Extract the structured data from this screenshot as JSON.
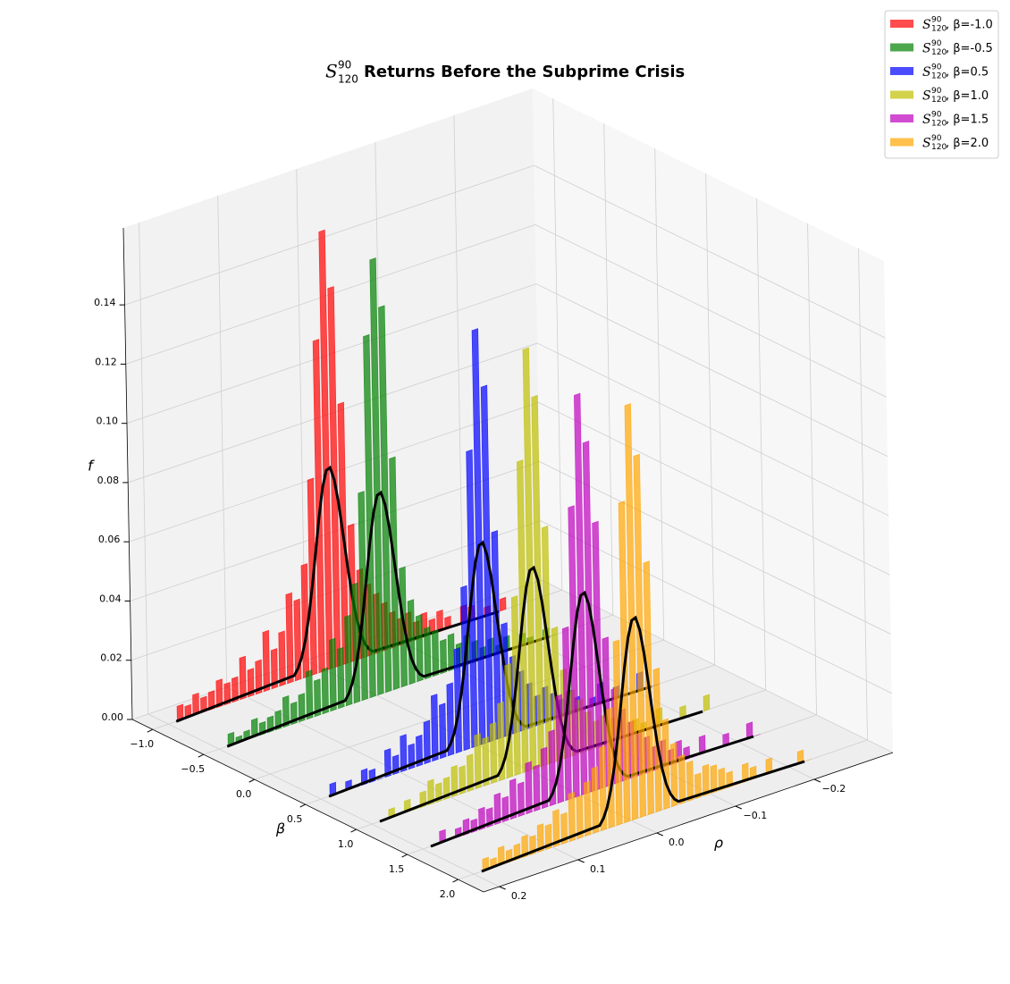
{
  "chart_data": {
    "type": "histogram3d",
    "symbol": {
      "base": "S",
      "sup": "90",
      "sub": "120"
    },
    "title": "Returns Before the Subprime Crisis",
    "xlabel": "ρ",
    "ylabel": "β",
    "zlabel": "f",
    "xlim": [
      -0.3,
      0.22
    ],
    "ylim": [
      -1.2,
      2.25
    ],
    "zlim": [
      0,
      0.166
    ],
    "xticks": [
      {
        "value": -0.2,
        "label": "−0.2"
      },
      {
        "value": -0.1,
        "label": "−0.1"
      },
      {
        "value": 0,
        "label": "0.0"
      },
      0.1,
      0.2
    ],
    "yticks": [
      {
        "value": -1,
        "label": "−1.0"
      },
      {
        "value": -0.5,
        "label": "−0.5"
      },
      {
        "value": 0,
        "label": "0.0"
      },
      0.5,
      {
        "value": 1,
        "label": "1.0"
      },
      1.5,
      {
        "value": 2,
        "label": "2.0"
      }
    ],
    "zticks": [
      {
        "value": 0,
        "label": "0.00"
      },
      {
        "value": 0.02,
        "label": "0.02"
      },
      {
        "value": 0.04,
        "label": "0.04"
      },
      {
        "value": 0.06,
        "label": "0.06"
      },
      {
        "value": 0.08,
        "label": "0.08"
      },
      {
        "value": 0.1,
        "label": "0.10"
      },
      {
        "value": 0.12,
        "label": "0.12"
      },
      {
        "value": 0.14,
        "label": "0.14"
      }
    ],
    "grid": true,
    "legend": "upper right",
    "fit_color": "#000000",
    "bins": [
      -0.23,
      -0.22,
      -0.21,
      -0.2,
      -0.19,
      -0.18,
      -0.17,
      -0.16,
      -0.15,
      -0.14,
      -0.13,
      -0.12,
      -0.11,
      -0.1,
      -0.09,
      -0.08,
      -0.07,
      -0.06,
      -0.05,
      -0.04,
      -0.03,
      -0.02,
      -0.01,
      0,
      0.01,
      0.02,
      0.03,
      0.04,
      0.05,
      0.06,
      0.07,
      0.08,
      0.09,
      0.1,
      0.11,
      0.12,
      0.13,
      0.14,
      0.15,
      0.16,
      0.17,
      0.18,
      0.19
    ],
    "fit_x": [
      -0.22,
      -0.06,
      -0.055,
      -0.05,
      -0.045,
      -0.04,
      -0.035,
      -0.03,
      -0.025,
      -0.02,
      -0.015,
      -0.01,
      -0.005,
      0,
      0.005,
      0.01,
      0.015,
      0.02,
      0.025,
      0.03,
      0.035,
      0.04,
      0.19
    ],
    "series": [
      {
        "name": ", β=-1.0",
        "beta": -1.0,
        "color": "#ff0000",
        "values": [
          0.004,
          0,
          0.003,
          0,
          0.005,
          0.006,
          0,
          0.004,
          0.007,
          0.005,
          0.008,
          0.006,
          0.01,
          0.009,
          0.012,
          0.016,
          0.02,
          0.024,
          0.03,
          0.046,
          0.088,
          0.128,
          0.148,
          0.112,
          0.066,
          0.038,
          0.027,
          0.03,
          0.018,
          0.013,
          0.02,
          0.011,
          0.009,
          0.014,
          0.008,
          0.007,
          0.009,
          0.006,
          0.005,
          0.007,
          0.004,
          0.005
        ],
        "fit": [
          0,
          0.001,
          0.0022,
          0.0045,
          0.0082,
          0.014,
          0.0221,
          0.0322,
          0.0435,
          0.0545,
          0.063,
          0.0676,
          0.0671,
          0.0616,
          0.0524,
          0.0413,
          0.0301,
          0.0203,
          0.0127,
          0.0073,
          0.0039,
          0.0019,
          0
        ]
      },
      {
        "name": ", β=-0.5",
        "beta": -0.5,
        "color": "#008000",
        "values": [
          0,
          0.003,
          0,
          0.002,
          0.004,
          0,
          0.005,
          0.003,
          0.006,
          0.004,
          0.007,
          0.01,
          0.008,
          0.012,
          0.011,
          0.015,
          0.017,
          0.022,
          0.028,
          0.04,
          0.078,
          0.13,
          0.147,
          0.122,
          0.07,
          0.04,
          0.03,
          0.02,
          0.024,
          0.015,
          0.012,
          0.016,
          0.009,
          0.007,
          0.01,
          0.006,
          0.005,
          0.004,
          0.006,
          0.003,
          0.002,
          0.004
        ],
        "fit": [
          0,
          0.001,
          0.0022,
          0.0045,
          0.0082,
          0.014,
          0.0221,
          0.0322,
          0.0435,
          0.0545,
          0.063,
          0.0676,
          0.0671,
          0.0616,
          0.0524,
          0.0413,
          0.0301,
          0.0203,
          0.0127,
          0.0073,
          0.0039,
          0.0019,
          0
        ]
      },
      {
        "name": ", β=0.5",
        "beta": 0.5,
        "color": "#0000ff",
        "values": [
          0,
          0,
          0.006,
          0,
          0,
          0.004,
          0,
          0.007,
          0.003,
          0,
          0.005,
          0.008,
          0.006,
          0.009,
          0.012,
          0.01,
          0.015,
          0.02,
          0.026,
          0.038,
          0.07,
          0.12,
          0.14,
          0.1,
          0.055,
          0.035,
          0.024,
          0.018,
          0.022,
          0.014,
          0.01,
          0.008,
          0.012,
          0.006,
          0.009,
          0,
          0.004,
          0.005,
          0,
          0.003,
          0,
          0.004
        ],
        "fit": [
          0,
          0.001,
          0.0022,
          0.0045,
          0.0082,
          0.014,
          0.0221,
          0.0322,
          0.0435,
          0.0545,
          0.063,
          0.0676,
          0.0671,
          0.0616,
          0.0524,
          0.0413,
          0.0301,
          0.0203,
          0.0127,
          0.0073,
          0.0039,
          0.0019,
          0
        ]
      },
      {
        "name": ", β=1.0",
        "beta": 1.0,
        "color": "#bfbf00",
        "values": [
          0.005,
          0,
          0,
          0.004,
          0,
          0,
          0.006,
          0,
          0.003,
          0.005,
          0,
          0.007,
          0.008,
          0.01,
          0.009,
          0.013,
          0.018,
          0.022,
          0.03,
          0.045,
          0.08,
          0.125,
          0.142,
          0.105,
          0.06,
          0.038,
          0.026,
          0.02,
          0.016,
          0.018,
          0.012,
          0.009,
          0.01,
          0.007,
          0.006,
          0.008,
          0.005,
          0,
          0.004,
          0,
          0.003,
          0
        ],
        "fit": [
          0,
          0.001,
          0.0022,
          0.0045,
          0.0082,
          0.014,
          0.0221,
          0.0322,
          0.0435,
          0.0545,
          0.063,
          0.0676,
          0.0671,
          0.0616,
          0.0524,
          0.0413,
          0.0301,
          0.0203,
          0.0127,
          0.0073,
          0.0039,
          0.0019,
          0
        ]
      },
      {
        "name": ", β=1.5",
        "beta": 1.5,
        "color": "#bf00bf",
        "values": [
          0,
          0.005,
          0,
          0,
          0.004,
          0,
          0,
          0.006,
          0,
          0.004,
          0.007,
          0.005,
          0.009,
          0.008,
          0.012,
          0.014,
          0.019,
          0.024,
          0.032,
          0.05,
          0.09,
          0.118,
          0.135,
          0.098,
          0.058,
          0.036,
          0.025,
          0.02,
          0.015,
          0.017,
          0.011,
          0.013,
          0.008,
          0.01,
          0.006,
          0.007,
          0.004,
          0.005,
          0.003,
          0,
          0.004,
          0
        ],
        "fit": [
          0,
          0.001,
          0.0022,
          0.0045,
          0.0082,
          0.014,
          0.0221,
          0.0322,
          0.0435,
          0.0545,
          0.063,
          0.0676,
          0.0671,
          0.0616,
          0.0524,
          0.0413,
          0.0301,
          0.0203,
          0.0127,
          0.0073,
          0.0039,
          0.0019,
          0
        ]
      },
      {
        "name": ", β=2.0",
        "beta": 2.0,
        "color": "#ffa500",
        "values": [
          0,
          0.004,
          0,
          0,
          0,
          0.005,
          0,
          0.004,
          0.006,
          0,
          0.005,
          0.007,
          0.009,
          0.01,
          0.008,
          0.013,
          0.016,
          0.021,
          0.03,
          0.048,
          0.085,
          0.122,
          0.14,
          0.108,
          0.062,
          0.04,
          0.028,
          0.022,
          0.018,
          0.014,
          0.016,
          0.01,
          0.012,
          0.008,
          0.009,
          0.006,
          0.007,
          0.005,
          0.004,
          0.006,
          0.003,
          0.004
        ],
        "fit": [
          0,
          0.001,
          0.0022,
          0.0045,
          0.0082,
          0.014,
          0.0221,
          0.0322,
          0.0435,
          0.0545,
          0.063,
          0.0676,
          0.0671,
          0.0616,
          0.0524,
          0.0413,
          0.0301,
          0.0203,
          0.0127,
          0.0073,
          0.0039,
          0.0019,
          0
        ]
      }
    ]
  }
}
